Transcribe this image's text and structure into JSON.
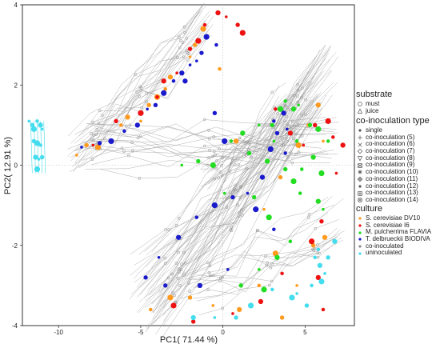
{
  "chart_data": {
    "type": "scatter",
    "xlabel": "PC1( 71.44 %)",
    "ylabel": "PC2( 12.91 %)",
    "xlim": [
      -12.2,
      8.0
    ],
    "ylim": [
      -4.0,
      4.0
    ],
    "x_ticks": [
      -10,
      -5,
      0,
      5
    ],
    "y_ticks": [
      -4,
      -2,
      0,
      2,
      4
    ],
    "reference_lines": {
      "x": 0,
      "y": 0,
      "style": "dotted"
    },
    "connections": "grey lines join successive samples of each ferment trajectory",
    "legend_placement": "right",
    "colors": {
      "S. cerevisiae DV10": "#ff9a1f",
      "S. cerevisiae I6": "#ee1111",
      "M. pulcherrima FLAVIA": "#22dd22",
      "T. delbrueckii BIODIVA": "#1a1acc",
      "co-inoculated": "#888888",
      "uninoculated": "#44ddee"
    },
    "series": [
      {
        "name": "S. cerevisiae DV10",
        "points": [
          [
            -8.9,
            0.25
          ],
          [
            -8.3,
            0.5
          ],
          [
            -7.6,
            0.45
          ],
          [
            -6.2,
            1.0
          ],
          [
            -5.8,
            1.2
          ],
          [
            -5.0,
            1.1
          ],
          [
            -4.5,
            1.5
          ],
          [
            -4.0,
            1.7
          ],
          [
            -3.5,
            1.9
          ],
          [
            -3.2,
            2.2
          ],
          [
            -2.0,
            2.7
          ],
          [
            -1.7,
            3.0
          ],
          [
            -1.2,
            3.4
          ],
          [
            -0.2,
            2.4
          ],
          [
            0.8,
            0.6
          ],
          [
            2.5,
            -1.1
          ],
          [
            3.5,
            -0.3
          ],
          [
            4.6,
            0.5
          ],
          [
            5.2,
            1.0
          ],
          [
            5.8,
            1.5
          ],
          [
            6.1,
            0.6
          ],
          [
            5.5,
            -2.0
          ],
          [
            3.2,
            -2.2
          ],
          [
            2.2,
            -3.0
          ],
          [
            1.0,
            -3.6
          ],
          [
            -0.6,
            -3.5
          ],
          [
            -2.0,
            -3.3
          ],
          [
            -3.2,
            -3.3
          ],
          [
            -4.4,
            -3.6
          ],
          [
            6.2,
            -1.8
          ],
          [
            4.5,
            -3.0
          ],
          [
            3.6,
            -3.8
          ]
        ]
      },
      {
        "name": "S. cerevisiae I6",
        "points": [
          [
            -7.9,
            0.5
          ],
          [
            -6.5,
            1.1
          ],
          [
            -5.0,
            1.3
          ],
          [
            -4.0,
            1.7
          ],
          [
            -3.6,
            2.1
          ],
          [
            -2.8,
            2.3
          ],
          [
            -2.0,
            2.9
          ],
          [
            -1.5,
            3.1
          ],
          [
            -1.1,
            3.5
          ],
          [
            -0.3,
            3.8
          ],
          [
            0.2,
            3.7
          ],
          [
            0.9,
            3.5
          ],
          [
            1.2,
            3.3
          ],
          [
            3.2,
            1.4
          ],
          [
            4.1,
            0.8
          ],
          [
            4.9,
            0.5
          ],
          [
            5.6,
            1.0
          ],
          [
            6.4,
            1.1
          ],
          [
            6.7,
            0.7
          ],
          [
            7.3,
            0.5
          ],
          [
            6.9,
            -0.2
          ],
          [
            6.0,
            -1.4
          ],
          [
            5.4,
            -1.9
          ],
          [
            3.6,
            -2.7
          ],
          [
            2.3,
            -3.4
          ],
          [
            0.6,
            -3.7
          ],
          [
            -1.8,
            -3.9
          ],
          [
            -3.0,
            -3.5
          ],
          [
            6.1,
            -3.6
          ],
          [
            5.8,
            -2.8
          ]
        ]
      },
      {
        "name": "M. pulcherrima FLAVIA",
        "points": [
          [
            -2.5,
            0.0
          ],
          [
            -1.5,
            0.1
          ],
          [
            -0.6,
            0.0
          ],
          [
            0.5,
            0.6
          ],
          [
            1.2,
            0.8
          ],
          [
            2.2,
            1.0
          ],
          [
            3.0,
            1.0
          ],
          [
            3.5,
            1.4
          ],
          [
            3.8,
            1.6
          ],
          [
            4.3,
            1.4
          ],
          [
            4.6,
            1.5
          ],
          [
            5.3,
            1.0
          ],
          [
            5.8,
            0.9
          ],
          [
            6.4,
            0.6
          ],
          [
            2.7,
            0.1
          ],
          [
            3.1,
            0.6
          ],
          [
            3.8,
            -0.1
          ],
          [
            4.3,
            -0.4
          ],
          [
            4.7,
            -0.7
          ],
          [
            5.8,
            -0.9
          ],
          [
            6.1,
            -1.1
          ],
          [
            1.9,
            -0.8
          ],
          [
            2.8,
            -1.3
          ],
          [
            4.1,
            -1.9
          ],
          [
            3.3,
            -2.3
          ],
          [
            2.2,
            -2.6
          ],
          [
            1.1,
            -3.0
          ],
          [
            2.5,
            -3.1
          ],
          [
            4.8,
            -0.1
          ],
          [
            5.5,
            0.2
          ],
          [
            0.1,
            -0.7
          ],
          [
            1.6,
            0.3
          ],
          [
            6.0,
            -0.2
          ],
          [
            4.5,
            0.6
          ]
        ]
      },
      {
        "name": "T. delbrueckii BIODIVA",
        "points": [
          [
            -8.6,
            0.45
          ],
          [
            -7.5,
            0.55
          ],
          [
            -6.8,
            0.6
          ],
          [
            -6.0,
            0.85
          ],
          [
            -5.2,
            1.0
          ],
          [
            -4.6,
            1.4
          ],
          [
            -4.1,
            1.5
          ],
          [
            -3.6,
            1.8
          ],
          [
            -3.0,
            2.1
          ],
          [
            -2.5,
            2.3
          ],
          [
            -2.0,
            2.5
          ],
          [
            -1.3,
            2.8
          ],
          [
            -1.0,
            3.2
          ],
          [
            -0.4,
            3.0
          ],
          [
            -2.3,
            2.1
          ],
          [
            -1.6,
            2.6
          ],
          [
            -0.5,
            1.3
          ],
          [
            0.1,
            0.6
          ],
          [
            3.1,
            1.1
          ],
          [
            3.7,
            1.3
          ],
          [
            3.9,
            0.9
          ],
          [
            3.3,
            0.8
          ],
          [
            2.9,
            0.4
          ],
          [
            3.8,
            0.3
          ],
          [
            2.4,
            -0.3
          ],
          [
            1.5,
            -0.7
          ],
          [
            0.6,
            -0.8
          ],
          [
            -0.5,
            -1.0
          ],
          [
            -1.6,
            -1.3
          ],
          [
            -2.7,
            -1.8
          ],
          [
            -3.9,
            -2.3
          ],
          [
            -4.7,
            -2.8
          ],
          [
            2.0,
            -1.1
          ],
          [
            3.1,
            -1.6
          ],
          [
            -1.4,
            -3.0
          ],
          [
            0.3,
            -2.6
          ],
          [
            -3.5,
            -3.0
          ]
        ]
      },
      {
        "name": "uninoculated",
        "points": [
          [
            -11.8,
            1.1
          ],
          [
            -11.6,
            1.0
          ],
          [
            -11.5,
            0.9
          ],
          [
            -11.3,
            1.1
          ],
          [
            -11.1,
            1.0
          ],
          [
            -11.0,
            0.9
          ],
          [
            -11.5,
            0.6
          ],
          [
            -11.3,
            0.55
          ],
          [
            -11.1,
            0.5
          ],
          [
            -11.4,
            0.2
          ],
          [
            -11.2,
            0.15
          ],
          [
            -11.0,
            0.2
          ],
          [
            -11.3,
            -0.1
          ],
          [
            5.6,
            -2.3
          ],
          [
            5.9,
            -2.5
          ],
          [
            6.2,
            -2.7
          ],
          [
            6.4,
            -2.3
          ],
          [
            6.0,
            -2.9
          ],
          [
            5.4,
            -3.0
          ],
          [
            6.8,
            -1.9
          ],
          [
            4.5,
            -3.2
          ],
          [
            5.1,
            -3.5
          ],
          [
            4.2,
            -3.3
          ],
          [
            5.8,
            -2.1
          ],
          [
            -1.8,
            -3.8
          ],
          [
            -0.5,
            -3.8
          ],
          [
            0.8,
            -3.8
          ],
          [
            1.7,
            -3.5
          ],
          [
            3.0,
            -3.1
          ]
        ]
      }
    ]
  },
  "legend": {
    "substrate": {
      "title": "substrate",
      "items": [
        {
          "label": "must",
          "shape": "circle"
        },
        {
          "label": "juice",
          "shape": "triangle"
        }
      ]
    },
    "coinoculation": {
      "title": "co-inoculation type",
      "items": [
        {
          "label": "single",
          "shape": "dot"
        },
        {
          "label": "co-inoculation (5)",
          "shape": "plus"
        },
        {
          "label": "co-inoculation (6)",
          "shape": "x"
        },
        {
          "label": "co-inoculation (7)",
          "shape": "diamond"
        },
        {
          "label": "co-inoculation (8)",
          "shape": "triangle-down"
        },
        {
          "label": "co-inoculation (9)",
          "shape": "square-x"
        },
        {
          "label": "co-inoculation (10)",
          "shape": "star"
        },
        {
          "label": "co-inoculation (11)",
          "shape": "diamond-plus"
        },
        {
          "label": "co-inoculation (12)",
          "shape": "dot"
        },
        {
          "label": "co-inoculation (13)",
          "shape": "square-plus"
        },
        {
          "label": "co-inoculation (14)",
          "shape": "circle-x"
        }
      ]
    },
    "culture": {
      "title": "culture",
      "items": [
        {
          "label": "S. cerevisiae DV10",
          "color": "#ff9a1f"
        },
        {
          "label": "S. cerevisiae I6",
          "color": "#ee1111"
        },
        {
          "label": "M. pulcherrima FLAVIA",
          "color": "#22dd22"
        },
        {
          "label": "T. delbrueckii BIODIVA",
          "color": "#1a1acc"
        },
        {
          "label": "co-inoculated",
          "color": "#888888"
        },
        {
          "label": "uninoculated",
          "color": "#44ddee"
        }
      ]
    }
  }
}
